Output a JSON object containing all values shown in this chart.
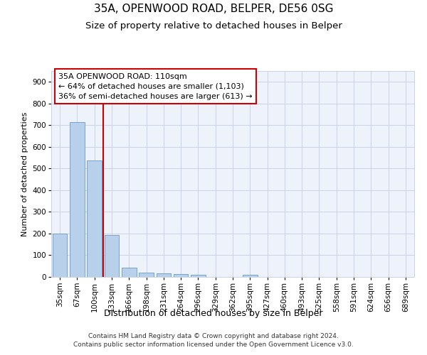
{
  "title1": "35A, OPENWOOD ROAD, BELPER, DE56 0SG",
  "title2": "Size of property relative to detached houses in Belper",
  "xlabel": "Distribution of detached houses by size in Belper",
  "ylabel": "Number of detached properties",
  "categories": [
    "35sqm",
    "67sqm",
    "100sqm",
    "133sqm",
    "166sqm",
    "198sqm",
    "231sqm",
    "264sqm",
    "296sqm",
    "329sqm",
    "362sqm",
    "395sqm",
    "427sqm",
    "460sqm",
    "493sqm",
    "525sqm",
    "558sqm",
    "591sqm",
    "624sqm",
    "656sqm",
    "689sqm"
  ],
  "values": [
    201,
    715,
    538,
    193,
    42,
    20,
    15,
    12,
    10,
    0,
    0,
    10,
    0,
    0,
    0,
    0,
    0,
    0,
    0,
    0,
    0
  ],
  "bar_color": "#b8d0ea",
  "bar_edge_color": "#6699cc",
  "red_line_x": 2.5,
  "annotation_line1": "35A OPENWOOD ROAD: 110sqm",
  "annotation_line2": "← 64% of detached houses are smaller (1,103)",
  "annotation_line3": "36% of semi-detached houses are larger (613) →",
  "annotation_box_color": "#ffffff",
  "annotation_box_edge": "#cc0000",
  "footer": "Contains HM Land Registry data © Crown copyright and database right 2024.\nContains public sector information licensed under the Open Government Licence v3.0.",
  "ylim": [
    0,
    950
  ],
  "yticks": [
    0,
    100,
    200,
    300,
    400,
    500,
    600,
    700,
    800,
    900
  ],
  "plot_bg": "#eef3fb",
  "grid_color": "#c8d4e8",
  "title1_fontsize": 11,
  "title2_fontsize": 9.5,
  "xlabel_fontsize": 9,
  "ylabel_fontsize": 8,
  "tick_fontsize": 7.5,
  "footer_fontsize": 6.5,
  "annotation_fontsize": 8,
  "red_line_color": "#cc0000"
}
